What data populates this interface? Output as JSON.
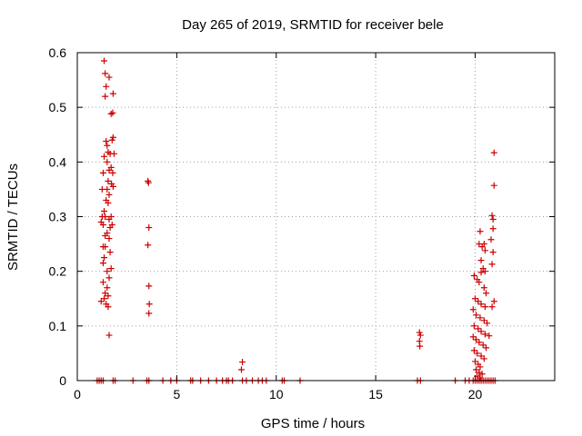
{
  "chart_data": {
    "type": "scatter",
    "title": "Day 265 of 2019, SRMTID for receiver bele",
    "xlabel": "GPS time / hours",
    "ylabel": "SRMTID / TECUs",
    "xlim": [
      0,
      24
    ],
    "ylim": [
      0,
      0.6
    ],
    "x_ticks": [
      0,
      5,
      10,
      15,
      20
    ],
    "x_tick_labels": [
      "0",
      "5",
      "10",
      "15",
      "20"
    ],
    "y_ticks": [
      0,
      0.1,
      0.2,
      0.3,
      0.4,
      0.5,
      0.6
    ],
    "y_tick_labels": [
      "0",
      "0.1",
      "0.2",
      "0.3",
      "0.4",
      "0.5",
      "0.6"
    ],
    "grid": true,
    "marker": "plus",
    "color": "#cc0000",
    "series": [
      {
        "name": "SRMTID",
        "points": [
          [
            1.35,
            0.585
          ],
          [
            1.4,
            0.562
          ],
          [
            1.45,
            0.538
          ],
          [
            1.4,
            0.52
          ],
          [
            1.6,
            0.555
          ],
          [
            1.8,
            0.525
          ],
          [
            1.7,
            0.488
          ],
          [
            1.78,
            0.49
          ],
          [
            1.8,
            0.445
          ],
          [
            1.75,
            0.44
          ],
          [
            1.45,
            0.438
          ],
          [
            1.5,
            0.43
          ],
          [
            1.55,
            0.418
          ],
          [
            1.65,
            0.415
          ],
          [
            1.85,
            0.415
          ],
          [
            1.35,
            0.41
          ],
          [
            1.5,
            0.4
          ],
          [
            1.7,
            0.39
          ],
          [
            1.6,
            0.385
          ],
          [
            1.78,
            0.38
          ],
          [
            1.3,
            0.38
          ],
          [
            1.55,
            0.365
          ],
          [
            1.72,
            0.36
          ],
          [
            1.8,
            0.355
          ],
          [
            1.5,
            0.35
          ],
          [
            1.25,
            0.35
          ],
          [
            1.6,
            0.34
          ],
          [
            1.45,
            0.33
          ],
          [
            1.55,
            0.325
          ],
          [
            1.35,
            0.31
          ],
          [
            1.25,
            0.3
          ],
          [
            1.4,
            0.3
          ],
          [
            1.7,
            0.3
          ],
          [
            1.6,
            0.295
          ],
          [
            1.2,
            0.29
          ],
          [
            1.3,
            0.285
          ],
          [
            1.65,
            0.28
          ],
          [
            1.75,
            0.285
          ],
          [
            1.5,
            0.27
          ],
          [
            1.4,
            0.265
          ],
          [
            1.6,
            0.26
          ],
          [
            1.3,
            0.245
          ],
          [
            1.4,
            0.245
          ],
          [
            1.65,
            0.235
          ],
          [
            1.35,
            0.225
          ],
          [
            1.3,
            0.215
          ],
          [
            1.7,
            0.205
          ],
          [
            1.5,
            0.2
          ],
          [
            1.6,
            0.188
          ],
          [
            1.3,
            0.18
          ],
          [
            1.5,
            0.17
          ],
          [
            1.4,
            0.16
          ],
          [
            1.55,
            0.155
          ],
          [
            1.35,
            0.15
          ],
          [
            1.2,
            0.145
          ],
          [
            1.45,
            0.14
          ],
          [
            1.55,
            0.135
          ],
          [
            1.6,
            0.083
          ],
          [
            3.55,
            0.365
          ],
          [
            3.58,
            0.362
          ],
          [
            3.6,
            0.28
          ],
          [
            3.55,
            0.248
          ],
          [
            3.6,
            0.173
          ],
          [
            3.62,
            0.14
          ],
          [
            3.6,
            0.123
          ],
          [
            8.3,
            0.034
          ],
          [
            8.25,
            0.02
          ],
          [
            17.2,
            0.088
          ],
          [
            17.25,
            0.083
          ],
          [
            17.2,
            0.072
          ],
          [
            17.22,
            0.063
          ],
          [
            20.95,
            0.417
          ],
          [
            20.95,
            0.357
          ],
          [
            20.85,
            0.302
          ],
          [
            20.9,
            0.295
          ],
          [
            20.9,
            0.278
          ],
          [
            20.8,
            0.258
          ],
          [
            20.9,
            0.235
          ],
          [
            20.85,
            0.213
          ],
          [
            20.25,
            0.273
          ],
          [
            20.2,
            0.25
          ],
          [
            20.35,
            0.245
          ],
          [
            20.45,
            0.25
          ],
          [
            20.5,
            0.238
          ],
          [
            20.3,
            0.22
          ],
          [
            20.4,
            0.205
          ],
          [
            20.5,
            0.2
          ],
          [
            20.3,
            0.198
          ],
          [
            19.95,
            0.192
          ],
          [
            20.1,
            0.185
          ],
          [
            20.2,
            0.18
          ],
          [
            20.45,
            0.17
          ],
          [
            20.55,
            0.16
          ],
          [
            20.0,
            0.15
          ],
          [
            20.15,
            0.145
          ],
          [
            20.3,
            0.14
          ],
          [
            20.5,
            0.135
          ],
          [
            20.95,
            0.145
          ],
          [
            20.85,
            0.135
          ],
          [
            19.9,
            0.13
          ],
          [
            20.05,
            0.12
          ],
          [
            20.25,
            0.115
          ],
          [
            20.45,
            0.11
          ],
          [
            20.6,
            0.105
          ],
          [
            19.95,
            0.1
          ],
          [
            20.15,
            0.095
          ],
          [
            20.3,
            0.09
          ],
          [
            20.5,
            0.085
          ],
          [
            20.7,
            0.082
          ],
          [
            19.9,
            0.08
          ],
          [
            20.05,
            0.075
          ],
          [
            20.2,
            0.07
          ],
          [
            20.4,
            0.065
          ],
          [
            20.55,
            0.06
          ],
          [
            19.95,
            0.055
          ],
          [
            20.1,
            0.05
          ],
          [
            20.3,
            0.045
          ],
          [
            20.45,
            0.04
          ],
          [
            20.0,
            0.035
          ],
          [
            20.15,
            0.03
          ],
          [
            20.25,
            0.025
          ],
          [
            20.05,
            0.02
          ],
          [
            20.2,
            0.015
          ],
          [
            20.35,
            0.012
          ],
          [
            20.1,
            0.008
          ],
          [
            20.25,
            0.005
          ],
          [
            1.0,
            0
          ],
          [
            1.1,
            0
          ],
          [
            1.2,
            0
          ],
          [
            1.3,
            0
          ],
          [
            1.8,
            0
          ],
          [
            1.9,
            0
          ],
          [
            2.8,
            0
          ],
          [
            3.5,
            0
          ],
          [
            3.6,
            0
          ],
          [
            4.3,
            0
          ],
          [
            4.7,
            0
          ],
          [
            5.0,
            0
          ],
          [
            5.7,
            0
          ],
          [
            5.8,
            0
          ],
          [
            6.2,
            0
          ],
          [
            6.6,
            0
          ],
          [
            7.0,
            0
          ],
          [
            7.3,
            0
          ],
          [
            7.5,
            0
          ],
          [
            7.6,
            0
          ],
          [
            7.8,
            0
          ],
          [
            8.3,
            0
          ],
          [
            8.5,
            0
          ],
          [
            8.8,
            0
          ],
          [
            9.1,
            0
          ],
          [
            9.3,
            0
          ],
          [
            9.5,
            0
          ],
          [
            10.3,
            0
          ],
          [
            10.4,
            0
          ],
          [
            11.2,
            0
          ],
          [
            17.1,
            0
          ],
          [
            17.25,
            0
          ],
          [
            19.0,
            0
          ],
          [
            19.5,
            0
          ],
          [
            19.7,
            0
          ],
          [
            19.9,
            0
          ],
          [
            20.0,
            0
          ],
          [
            20.1,
            0
          ],
          [
            20.2,
            0
          ],
          [
            20.3,
            0
          ],
          [
            20.4,
            0
          ],
          [
            20.5,
            0
          ],
          [
            20.6,
            0
          ],
          [
            20.7,
            0
          ],
          [
            20.8,
            0
          ],
          [
            20.9,
            0
          ],
          [
            21.0,
            0
          ]
        ]
      }
    ]
  }
}
